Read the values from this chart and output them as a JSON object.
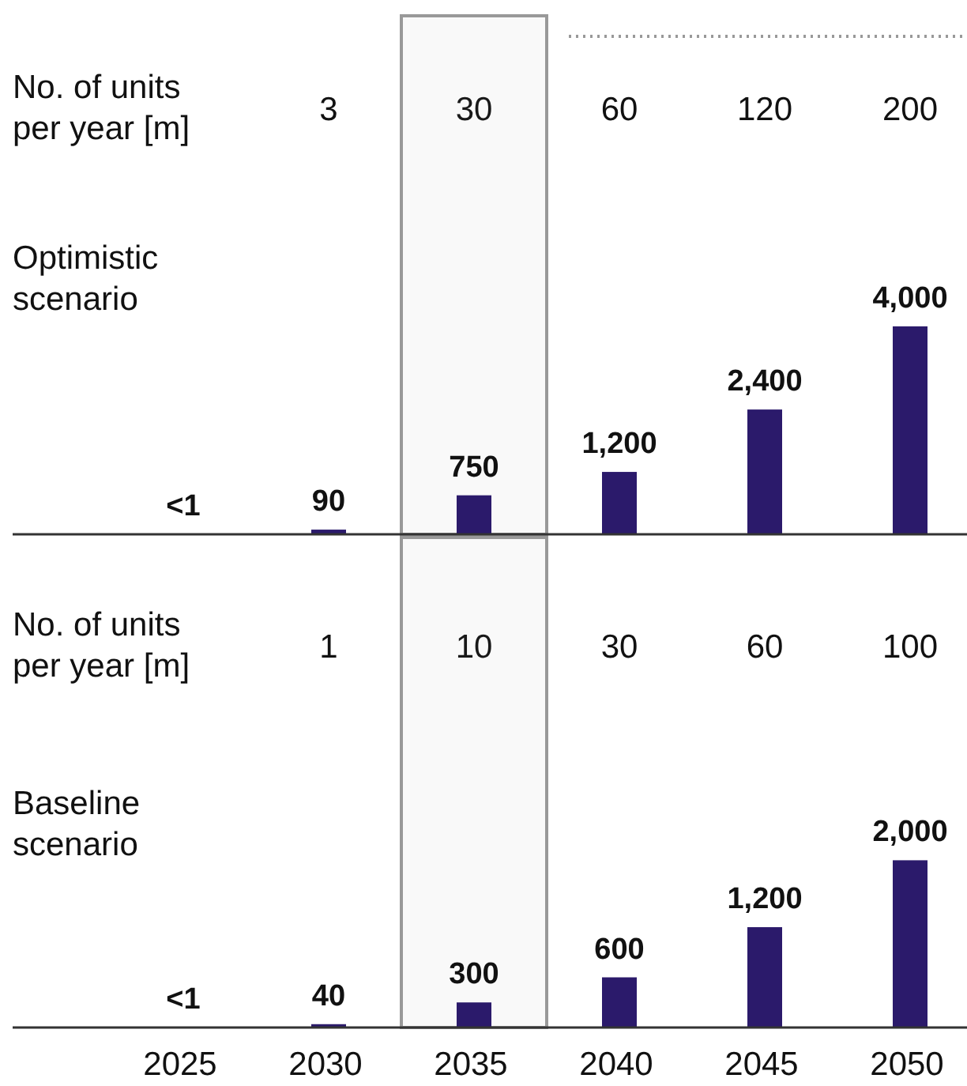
{
  "chart_data": [
    {
      "type": "bar",
      "title": "Optimistic scenario",
      "categories": [
        "2025",
        "2030",
        "2035",
        "2040",
        "2045",
        "2050"
      ],
      "values": [
        0.5,
        90,
        750,
        1200,
        2400,
        4000
      ],
      "value_labels": [
        "<1",
        "90",
        "750",
        "1,200",
        "2,400",
        "4,000"
      ],
      "color": "#2b1a6b",
      "tick_labels": false,
      "annotations": [
        "No. of units per year [m]",
        "3",
        "30",
        "60",
        "120",
        "200"
      ],
      "bands": [
        {
          "axis": "x",
          "from": "2035",
          "to": "2035",
          "color": "#999999"
        }
      ]
    },
    {
      "type": "bar",
      "title": "Baseline scenario",
      "categories": [
        "2025",
        "2030",
        "2035",
        "2040",
        "2045",
        "2050"
      ],
      "values": [
        0.5,
        40,
        300,
        600,
        1200,
        2000
      ],
      "value_labels": [
        "<1",
        "40",
        "300",
        "600",
        "1,200",
        "2,000"
      ],
      "color": "#2b1a6b",
      "annotations": [
        "No. of units per year [m]",
        "1",
        "10",
        "30",
        "60",
        "100"
      ],
      "bands": [
        {
          "axis": "x",
          "from": "2035",
          "to": "2035",
          "color": "#999999"
        }
      ]
    }
  ]
}
